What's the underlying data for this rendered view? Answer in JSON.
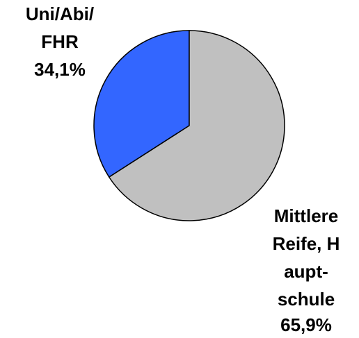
{
  "chart_data": {
    "type": "pie",
    "categories": [
      [
        "Uni/Abi/",
        "FHR"
      ],
      [
        "Mittlere",
        "Reife, H",
        "aupt-",
        "schule"
      ]
    ],
    "values": [
      34.1,
      65.9
    ],
    "value_labels": [
      "34,1%",
      "65,9%"
    ],
    "colors": [
      "#3366ff",
      "#c0c0c0"
    ]
  }
}
